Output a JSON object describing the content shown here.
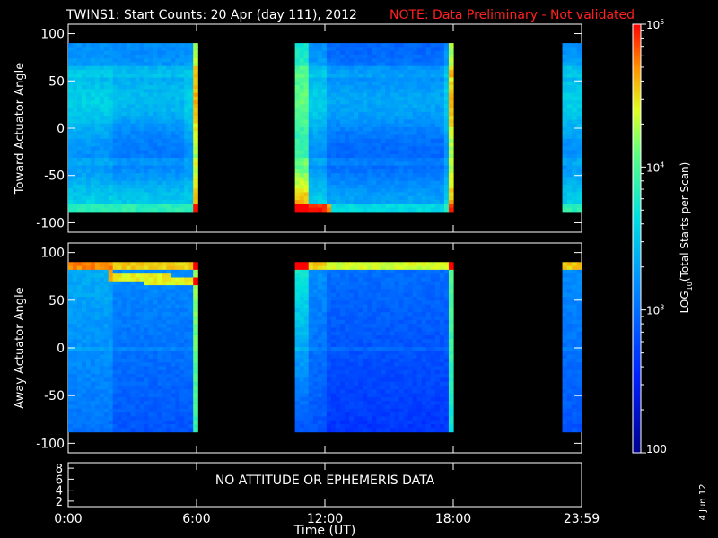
{
  "header": {
    "title": "TWINS1: Start Counts: 20 Apr (day 111), 2012",
    "note": "NOTE: Data Preliminary - Not validated",
    "note_color": "#ff2020"
  },
  "footer": {
    "date_stamp": "4 Jun 12"
  },
  "chart_data": [
    {
      "type": "heatmap",
      "panel": "toward",
      "ylabel": "Toward Actuator Angle",
      "ylim": [
        -110,
        110
      ],
      "yticks": [
        "100",
        "50",
        "0",
        "-50",
        "-100"
      ],
      "ytick_values": [
        100,
        50,
        0,
        -50,
        -100
      ],
      "data_angle_range": [
        -88,
        90
      ],
      "data_intervals": [
        {
          "start_hour": 0.0,
          "end_hour": 6.05
        },
        {
          "start_hour": 10.6,
          "end_hour": 18.0
        },
        {
          "start_hour": 23.1,
          "end_hour": 24.0
        }
      ],
      "colorbar_log10_range": [
        2,
        5
      ]
    },
    {
      "type": "heatmap",
      "panel": "away",
      "ylabel": "Away Actuator Angle",
      "ylim": [
        -110,
        110
      ],
      "yticks": [
        "100",
        "50",
        "0",
        "-50",
        "-100"
      ],
      "ytick_values": [
        100,
        50,
        0,
        -50,
        -100
      ],
      "data_angle_range": [
        -88,
        90
      ],
      "data_intervals": [
        {
          "start_hour": 0.0,
          "end_hour": 6.05
        },
        {
          "start_hour": 10.6,
          "end_hour": 18.0
        },
        {
          "start_hour": 23.1,
          "end_hour": 24.0
        }
      ],
      "colorbar_log10_range": [
        2,
        5
      ]
    },
    {
      "type": "table",
      "panel": "attitude",
      "message": "NO ATTITUDE OR EPHEMERIS DATA",
      "yticks": [
        "8",
        "6",
        "4",
        "2"
      ],
      "ytick_values": [
        8,
        6,
        4,
        2
      ],
      "ylim": [
        1,
        9
      ]
    }
  ],
  "x_axis": {
    "label": "Time (UT)",
    "xlim": [
      0,
      24
    ],
    "ticks": [
      {
        "label": "0:00",
        "hour": 0
      },
      {
        "label": "6:00",
        "hour": 6
      },
      {
        "label": "12:00",
        "hour": 12
      },
      {
        "label": "18:00",
        "hour": 18
      },
      {
        "label": "23:59",
        "hour": 24
      }
    ]
  },
  "colorbar": {
    "label": "LOG",
    "label_sub": "10",
    "label_rest": "(Total Starts per Scan)",
    "ticks": [
      {
        "base": "10",
        "exp": "5",
        "log": 5
      },
      {
        "base": "10",
        "exp": "4",
        "log": 4
      },
      {
        "base": "10",
        "exp": "3",
        "log": 3
      },
      {
        "base": "100",
        "exp": "",
        "log": 2
      }
    ]
  }
}
